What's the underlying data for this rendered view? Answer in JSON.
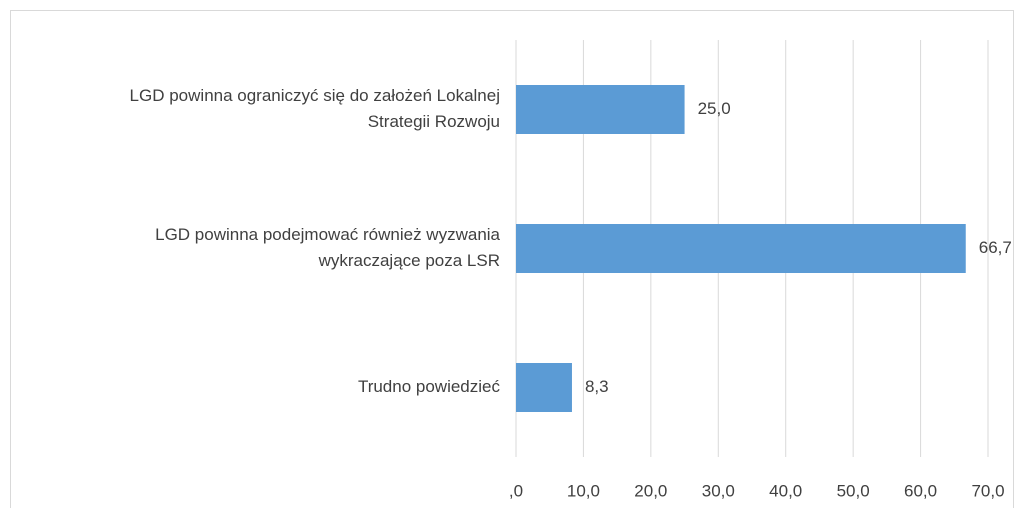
{
  "chart_data": {
    "type": "bar",
    "orientation": "horizontal",
    "categories": [
      [
        "LGD powinna ograniczyć się do założeń Lokalnej",
        "Strategii Rozwoju"
      ],
      [
        "LGD powinna podejmować również wyzwania",
        "wykraczające poza LSR"
      ],
      [
        "Trudno powiedzieć"
      ]
    ],
    "values": [
      25.0,
      66.7,
      8.3
    ],
    "value_labels": [
      "25,0",
      "66,7",
      "8,3"
    ],
    "color": "#5b9bd5",
    "xlim": [
      0,
      70
    ],
    "xticks": [
      {
        "value": 0,
        "label": ",0"
      },
      {
        "value": 10,
        "label": "10,0"
      },
      {
        "value": 20,
        "label": "20,0"
      },
      {
        "value": 30,
        "label": "30,0"
      },
      {
        "value": 40,
        "label": "40,0"
      },
      {
        "value": 50,
        "label": "50,0"
      },
      {
        "value": 60,
        "label": "60,0"
      },
      {
        "value": 70,
        "label": "70,0"
      }
    ],
    "grid": true
  }
}
